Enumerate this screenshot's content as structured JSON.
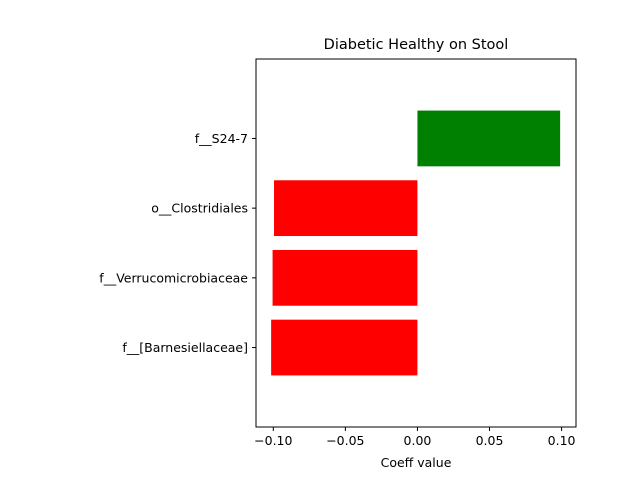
{
  "chart_data": {
    "type": "bar",
    "orientation": "horizontal",
    "title": "Diabetic Healthy on Stool",
    "xlabel": "Coeff value",
    "ylabel": "",
    "categories": [
      "f__[Barnesiellaceae]",
      "f__Verrucomicrobiaceae",
      "o__Clostridiales",
      "f__S24-7"
    ],
    "values": [
      -0.1015,
      -0.1005,
      -0.0995,
      0.099
    ],
    "colors": [
      "#ff0000",
      "#ff0000",
      "#ff0000",
      "#008000"
    ],
    "xlim": [
      -0.112,
      0.11
    ],
    "xticks": [
      {
        "value": -0.1,
        "label": "−0.10"
      },
      {
        "value": -0.05,
        "label": "−0.05"
      },
      {
        "value": 0.0,
        "label": "0.00"
      },
      {
        "value": 0.05,
        "label": "0.05"
      },
      {
        "value": 0.1,
        "label": "0.10"
      }
    ],
    "grid": false,
    "legend": "none"
  }
}
